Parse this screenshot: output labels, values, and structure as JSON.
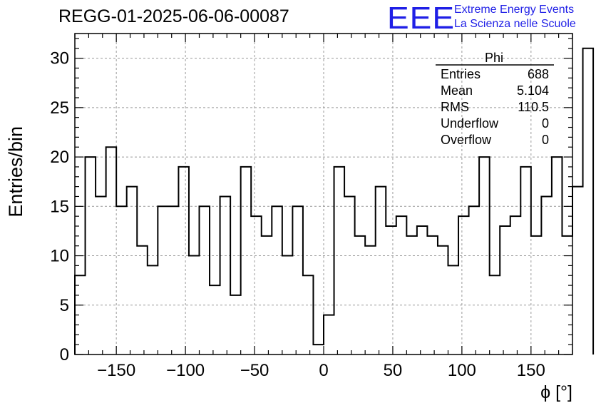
{
  "header": {
    "run_title": "REGG-01-2025-06-06-00087",
    "logo_text": "EEE",
    "logo_line1": "Extreme Energy Events",
    "logo_line2": "La Scienza nelle Scuole",
    "logo_color": "#1f1fe6"
  },
  "chart_data": {
    "type": "histogram",
    "title": "REGG-01-2025-06-06-00087",
    "xlabel": "ϕ [°]",
    "ylabel": "Entries/bin",
    "xlim": [
      -180,
      180
    ],
    "ylim": [
      0,
      32.5
    ],
    "xticks": [
      -150,
      -100,
      -50,
      0,
      50,
      100,
      150
    ],
    "xtick_labels": [
      "−150",
      "−100",
      "−50",
      "0",
      "50",
      "100",
      "150"
    ],
    "yticks": [
      0,
      5,
      10,
      15,
      20,
      25,
      30
    ],
    "grid": true,
    "bin_width": 7.5,
    "bin_edges_start": -180,
    "values": [
      8,
      20,
      16,
      21,
      15,
      17,
      11,
      9,
      15,
      15,
      19,
      10,
      15,
      7,
      16,
      6,
      19,
      14,
      12,
      15,
      10,
      15,
      8,
      1,
      4,
      19,
      16,
      12,
      11,
      17,
      13,
      14,
      12,
      13,
      12,
      11,
      9,
      14,
      15,
      20,
      8,
      13,
      14,
      19,
      12,
      16,
      20,
      12,
      17,
      31
    ],
    "stats_box": {
      "title": "Phi",
      "rows": [
        {
          "label": "Entries",
          "value": "688"
        },
        {
          "label": "Mean",
          "value": "5.104"
        },
        {
          "label": "RMS",
          "value": "110.5"
        },
        {
          "label": "Underflow",
          "value": "0"
        },
        {
          "label": "Overflow",
          "value": "0"
        }
      ]
    }
  }
}
